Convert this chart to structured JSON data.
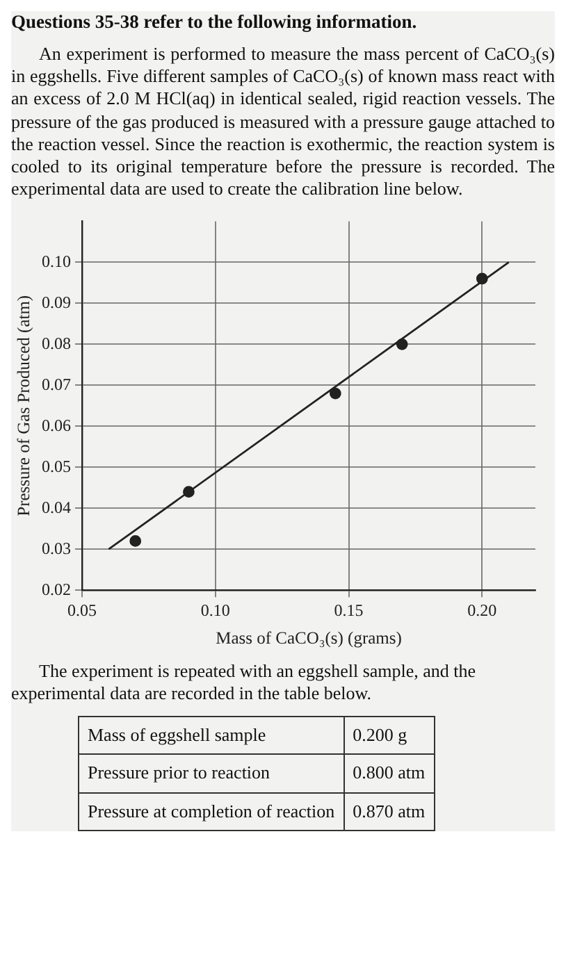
{
  "chart_data": {
    "type": "scatter",
    "title": "Questions 35-38 refer to the following information.",
    "subtitle": "An experiment is performed to measure the mass percent of CaCO₃(s) in eggshells. Five different samples of CaCO₃(s) of known mass react with an excess of 2.0 M HCl(aq) in identical sealed, rigid reaction vessels. The pressure of the gas produced is measured with a pressure gauge attached to the reaction vessel. Since the reaction is exothermic, the reaction system is cooled to its original temperature before the pressure is recorded. The experimental data are used to create the calibration line below.",
    "xlabel": "Mass of CaCO₃(s) (grams)",
    "ylabel": "Pressure of Gas Produced (atm)",
    "series": [
      {
        "color": "#222222",
        "marker": "circle",
        "x": [
          0.07,
          0.09,
          0.145,
          0.17,
          0.2
        ],
        "values": [
          0.032,
          0.044,
          0.068,
          0.08,
          0.096
        ]
      },
      {
        "type": "line",
        "color": "#222222",
        "marker": "none",
        "x": [
          0.06,
          0.21
        ],
        "values": [
          0.03,
          0.1
        ]
      }
    ],
    "xlim": [
      0.05,
      0.22
    ],
    "xticks": [
      {
        "value": 0.05,
        "label": "0.05"
      },
      {
        "value": 0.1,
        "label": "0.10"
      },
      {
        "value": 0.15,
        "label": "0.15"
      },
      {
        "value": 0.2,
        "label": "0.20"
      }
    ],
    "ylim": [
      0.02,
      0.11
    ],
    "yticks": [
      {
        "value": 0.02,
        "label": "0.02"
      },
      {
        "value": 0.03,
        "label": "0.03"
      },
      {
        "value": 0.04,
        "label": "0.04"
      },
      {
        "value": 0.05,
        "label": "0.05"
      },
      {
        "value": 0.06,
        "label": "0.06"
      },
      {
        "value": 0.07,
        "label": "0.07"
      },
      {
        "value": 0.08,
        "label": "0.08"
      },
      {
        "value": 0.09,
        "label": "0.09"
      },
      {
        "value": 0.1,
        "label": "0.10"
      }
    ],
    "grid": true,
    "legend": false,
    "annotations": [
      "The experiment is repeated with an eggshell sample, and the experimental data are recorded in the table below.",
      "Mass of eggshell sample",
      "0.200 g",
      "Pressure prior to reaction",
      "0.800 atm",
      "Pressure at completion of reaction",
      "0.870 atm"
    ]
  }
}
